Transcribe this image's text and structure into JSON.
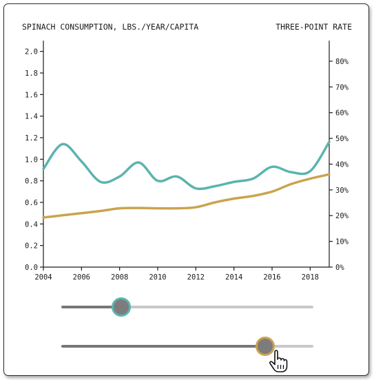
{
  "chart_data": {
    "type": "line",
    "title_left": "SPINACH CONSUMPTION, LBS./YEAR/CAPITA",
    "title_right": "THREE-POINT RATE",
    "x_ticks": [
      "2004",
      "2006",
      "2008",
      "2010",
      "2012",
      "2014",
      "2016",
      "2018"
    ],
    "xlim": [
      2004,
      2019
    ],
    "y_left_ticks": [
      "0.0",
      "0.2",
      "0.4",
      "0.6",
      "0.8",
      "1.0",
      "1.2",
      "1.4",
      "1.6",
      "1.8",
      "2.0"
    ],
    "y_left_lim": [
      0,
      2.1
    ],
    "y_right_ticks": [
      "0%",
      "10%",
      "20%",
      "30%",
      "40%",
      "50%",
      "60%",
      "70%",
      "80%"
    ],
    "y_right_lim": [
      0,
      88
    ],
    "series": [
      {
        "axis": "left",
        "color": "#5ab4ae",
        "x": [
          2004,
          2005,
          2006,
          2007,
          2008,
          2009,
          2010,
          2011,
          2012,
          2013,
          2014,
          2015,
          2016,
          2017,
          2018,
          2019
        ],
        "values": [
          0.91,
          1.14,
          0.98,
          0.79,
          0.84,
          0.97,
          0.8,
          0.84,
          0.73,
          0.75,
          0.79,
          0.82,
          0.93,
          0.88,
          0.89,
          1.16
        ]
      },
      {
        "axis": "left",
        "color": "#c9a44e",
        "x": [
          2004,
          2005,
          2006,
          2007,
          2008,
          2009,
          2010,
          2011,
          2012,
          2013,
          2014,
          2015,
          2016,
          2017,
          2018,
          2019
        ],
        "values": [
          0.46,
          0.48,
          0.5,
          0.52,
          0.545,
          0.548,
          0.545,
          0.545,
          0.555,
          0.6,
          0.635,
          0.66,
          0.7,
          0.77,
          0.82,
          0.86
        ]
      }
    ],
    "grid": false
  },
  "sliders": [
    {
      "value": 0.24,
      "color": "#5ab4ae"
    },
    {
      "value": 0.81,
      "color": "#c9a44e"
    }
  ],
  "icons": {
    "cursor": "hand-pointer-icon"
  }
}
